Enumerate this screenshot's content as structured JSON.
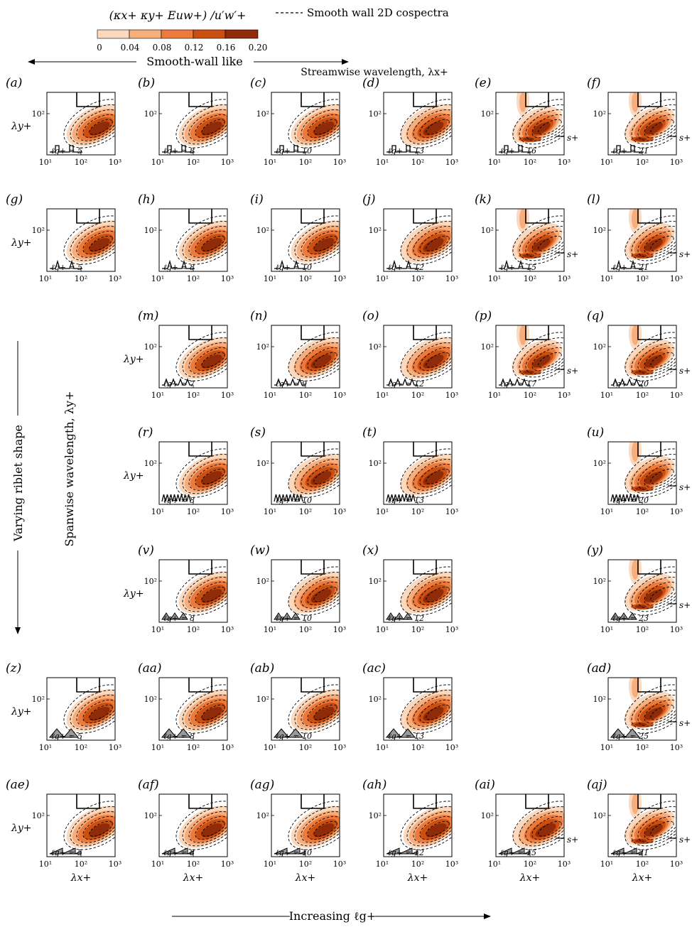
{
  "header": {
    "colorbar_title": "(κx+ κy+ Euw+) /u′w′+",
    "legend_smooth": "Smooth wall 2D cospectra",
    "smooth_like_label": "Smooth-wall like",
    "streamwise_label": "Streamwise wavelength, λx+",
    "spanwise_label": "Spanwise wavelength, λy+",
    "varying_label": "Varying riblet shape",
    "increasing_label": "Increasing ℓg+"
  },
  "colors": {
    "levels": [
      "#fbd9bf",
      "#f7ae7c",
      "#ec7a3c",
      "#cc4f12",
      "#8f2b09"
    ],
    "line": "#000000"
  },
  "chart_data": {
    "type": "heatmap",
    "colorbar": {
      "ticks": [
        "0",
        "0.04",
        "0.08",
        "0.12",
        "0.16",
        "0.20"
      ],
      "range": [
        0,
        0.2
      ]
    },
    "axes": {
      "xlabel": "λx+",
      "ylabel": "λy+",
      "xticks": [
        "10¹",
        "10²",
        "10³"
      ],
      "yticks": [
        "10²"
      ],
      "xscale": "log",
      "yscale": "log",
      "xlim": [
        10,
        1000
      ],
      "ylim": [
        10,
        200
      ]
    },
    "annotations": {
      "s_label": "s+"
    },
    "panels": [
      {
        "id": "(a)",
        "shape": "blade",
        "lg": "ℓg+ ≈ 5",
        "state": "smooth"
      },
      {
        "id": "(b)",
        "shape": "blade",
        "lg": "ℓg+ ≈ 8",
        "state": "smooth"
      },
      {
        "id": "(c)",
        "shape": "blade",
        "lg": "ℓg+ ≈ 10",
        "state": "smooth"
      },
      {
        "id": "(d)",
        "shape": "blade",
        "lg": "ℓg+ ≈ 13",
        "state": "mild"
      },
      {
        "id": "(e)",
        "shape": "blade",
        "lg": "ℓg+ ≈ 16",
        "state": "strong",
        "s": true
      },
      {
        "id": "(f)",
        "shape": "blade",
        "lg": "ℓg+ ≈ 21",
        "state": "strong",
        "s": true
      },
      {
        "id": "(g)",
        "shape": "trap",
        "lg": "ℓg+ ≈ 5",
        "state": "smooth"
      },
      {
        "id": "(h)",
        "shape": "trap",
        "lg": "ℓg+ ≈ 8",
        "state": "smooth"
      },
      {
        "id": "(i)",
        "shape": "trap",
        "lg": "ℓg+ ≈ 10",
        "state": "smooth"
      },
      {
        "id": "(j)",
        "shape": "trap",
        "lg": "ℓg+ ≈ 12",
        "state": "mild"
      },
      {
        "id": "(k)",
        "shape": "trap",
        "lg": "ℓg+ ≈ 15",
        "state": "strong",
        "s": true
      },
      {
        "id": "(l)",
        "shape": "trap",
        "lg": "ℓg+ ≈ 21",
        "state": "strong",
        "s": true
      },
      {
        "id": "(m)",
        "shape": "spike",
        "lg": "ℓg+ ≈ 7",
        "state": "smooth"
      },
      {
        "id": "(n)",
        "shape": "spike",
        "lg": "ℓg+ ≈ 9",
        "state": "mild"
      },
      {
        "id": "(o)",
        "shape": "spike",
        "lg": "ℓg+ ≈ 12",
        "state": "mild"
      },
      {
        "id": "(p)",
        "shape": "spike",
        "lg": "ℓg+ ≈ 17",
        "state": "strong",
        "s": true
      },
      {
        "id": "(q)",
        "shape": "spike",
        "lg": "ℓg+ ≈ 20",
        "state": "strong",
        "s": true
      },
      {
        "id": "(r)",
        "shape": "zigzag",
        "lg": "ℓg+ ≈ 8",
        "state": "smooth"
      },
      {
        "id": "(s)",
        "shape": "zigzag",
        "lg": "ℓg+ ≈ 10",
        "state": "mild"
      },
      {
        "id": "(t)",
        "shape": "zigzag",
        "lg": "ℓg+ ≈ 13",
        "state": "mild"
      },
      {
        "id": "(u)",
        "shape": "zigzag",
        "lg": "ℓg+ ≈ 20",
        "state": "strong",
        "s": true
      },
      {
        "id": "(v)",
        "shape": "tri3",
        "lg": "ℓg+ ≈ 8",
        "state": "smooth"
      },
      {
        "id": "(w)",
        "shape": "tri3",
        "lg": "ℓg+ ≈ 10",
        "state": "mild"
      },
      {
        "id": "(x)",
        "shape": "tri3",
        "lg": "ℓg+ ≈ 12",
        "state": "mild"
      },
      {
        "id": "(y)",
        "shape": "tri3",
        "lg": "ℓg+ ≈ 23",
        "state": "strong",
        "s": true
      },
      {
        "id": "(z)",
        "shape": "tri2",
        "lg": "ℓg+ ≈ 5",
        "state": "smooth"
      },
      {
        "id": "(aa)",
        "shape": "tri2",
        "lg": "ℓg+ ≈ 8",
        "state": "smooth"
      },
      {
        "id": "(ab)",
        "shape": "tri2",
        "lg": "ℓg+ ≈ 10",
        "state": "smooth"
      },
      {
        "id": "(ac)",
        "shape": "tri2",
        "lg": "ℓg+ ≈ 13",
        "state": "mild"
      },
      {
        "id": "(ad)",
        "shape": "tri2",
        "lg": "ℓg+ ≈ 25",
        "state": "strong",
        "s": true
      },
      {
        "id": "(ae)",
        "shape": "saw",
        "lg": "ℓg+ ≈ 5",
        "state": "smooth"
      },
      {
        "id": "(af)",
        "shape": "saw",
        "lg": "ℓg+ ≈ 8",
        "state": "smooth"
      },
      {
        "id": "(ag)",
        "shape": "saw",
        "lg": "ℓg+ ≈ 10",
        "state": "smooth"
      },
      {
        "id": "(ah)",
        "shape": "saw",
        "lg": "ℓg+ ≈ 12",
        "state": "smooth"
      },
      {
        "id": "(ai)",
        "shape": "saw",
        "lg": "ℓg+ ≈ 15",
        "state": "mild",
        "s": true
      },
      {
        "id": "(aj)",
        "shape": "saw",
        "lg": "ℓg+ ≈ 21",
        "state": "strong",
        "s": true
      }
    ]
  }
}
